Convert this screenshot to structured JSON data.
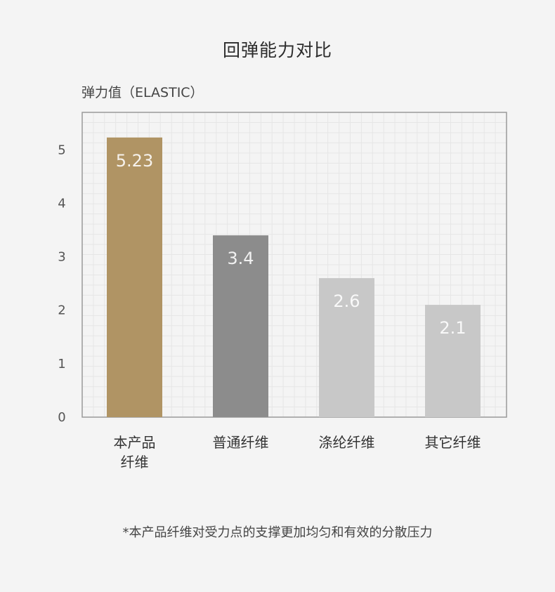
{
  "chart_data": {
    "type": "bar",
    "title": "回弹能力对比",
    "ylabel": "弹力值（ELASTIC）",
    "xlabel": "",
    "ylim": [
      0,
      5.7
    ],
    "yticks": [
      0,
      1,
      2,
      3,
      4,
      5
    ],
    "grid": true,
    "categories": [
      [
        "本产品",
        "纤维"
      ],
      [
        "普通纤维"
      ],
      [
        "涤纶纤维"
      ],
      [
        "其它纤维"
      ]
    ],
    "values": [
      5.23,
      3.4,
      2.6,
      2.1
    ],
    "value_labels": [
      "5.23",
      "3.4",
      "2.6",
      "2.1"
    ],
    "colors": [
      "#b09464",
      "#8c8c8c",
      "#c8c8c8",
      "#c8c8c8"
    ]
  },
  "footnote": "*本产品纤维对受力点的支撑更加均匀和有效的分散压力"
}
